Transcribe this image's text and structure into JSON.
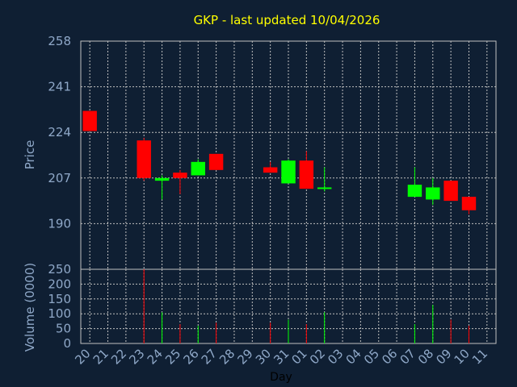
{
  "chart_data": [
    {
      "type": "candlestick",
      "title": "GKP - last updated 10/04/2026",
      "ylabel": "Price",
      "ylim": [
        173,
        258
      ],
      "yticks": [
        190,
        207,
        224,
        241,
        258
      ],
      "grid": true,
      "x": [
        "20",
        "21",
        "22",
        "23",
        "24",
        "25",
        "26",
        "27",
        "28",
        "29",
        "30",
        "31",
        "01",
        "02",
        "03",
        "04",
        "05",
        "06",
        "07",
        "08",
        "09",
        "10",
        "11"
      ],
      "candles": [
        {
          "x": "20",
          "open": 232,
          "close": 224.5,
          "high": 232,
          "low": 224.5
        },
        {
          "x": "23",
          "open": 221,
          "close": 207,
          "high": 222,
          "low": 206
        },
        {
          "x": "24",
          "open": 206,
          "close": 207,
          "high": 208,
          "low": 199
        },
        {
          "x": "25",
          "open": 209,
          "close": 207,
          "high": 210,
          "low": 201
        },
        {
          "x": "26",
          "open": 208,
          "close": 213,
          "high": 214,
          "low": 208
        },
        {
          "x": "27",
          "open": 216,
          "close": 210,
          "high": 216,
          "low": 210
        },
        {
          "x": "30",
          "open": 211,
          "close": 209,
          "high": 213,
          "low": 209
        },
        {
          "x": "31",
          "open": 205,
          "close": 213.5,
          "high": 214,
          "low": 205
        },
        {
          "x": "01",
          "open": 213.5,
          "close": 203,
          "high": 217,
          "low": 203
        },
        {
          "x": "02",
          "open": 203,
          "close": 203.5,
          "high": 211,
          "low": 202
        },
        {
          "x": "07",
          "open": 200,
          "close": 204.5,
          "high": 211,
          "low": 200
        },
        {
          "x": "08",
          "open": 199,
          "close": 203.5,
          "high": 207,
          "low": 197
        },
        {
          "x": "09",
          "open": 206,
          "close": 198.5,
          "high": 206,
          "low": 198.5
        },
        {
          "x": "10",
          "open": 200,
          "close": 195,
          "high": 200,
          "low": 193.5
        }
      ]
    },
    {
      "type": "bar",
      "ylabel": "Volume (0000)",
      "xlabel": "Day",
      "ylim": [
        0,
        250
      ],
      "yticks": [
        0,
        50,
        100,
        150,
        200,
        250
      ],
      "grid": true,
      "x": [
        "20",
        "21",
        "22",
        "23",
        "24",
        "25",
        "26",
        "27",
        "28",
        "29",
        "30",
        "31",
        "01",
        "02",
        "03",
        "04",
        "05",
        "06",
        "07",
        "08",
        "09",
        "10",
        "11"
      ],
      "bars": [
        {
          "x": "23",
          "value": 250,
          "direction": "down"
        },
        {
          "x": "24",
          "value": 105,
          "direction": "up"
        },
        {
          "x": "25",
          "value": 65,
          "direction": "down"
        },
        {
          "x": "26",
          "value": 60,
          "direction": "up"
        },
        {
          "x": "27",
          "value": 70,
          "direction": "down"
        },
        {
          "x": "30",
          "value": 70,
          "direction": "down"
        },
        {
          "x": "31",
          "value": 80,
          "direction": "up"
        },
        {
          "x": "01",
          "value": 65,
          "direction": "down"
        },
        {
          "x": "02",
          "value": 105,
          "direction": "up"
        },
        {
          "x": "07",
          "value": 65,
          "direction": "up"
        },
        {
          "x": "08",
          "value": 130,
          "direction": "up"
        },
        {
          "x": "09",
          "value": 80,
          "direction": "down"
        },
        {
          "x": "10",
          "value": 60,
          "direction": "down"
        }
      ]
    }
  ],
  "colors": {
    "background": "#0f1f33",
    "up": "#00ff00",
    "down": "#ff0000",
    "axis_text": "#8fa8c8",
    "title": "#ffff00",
    "grid": "#c0c0c0",
    "plot_border": "#c0c0c0"
  }
}
